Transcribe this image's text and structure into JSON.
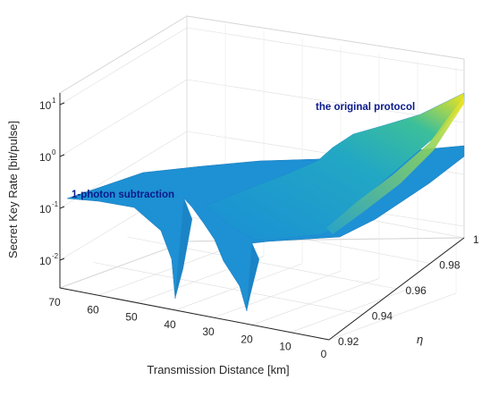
{
  "chart_data": {
    "type": "surface",
    "title": "",
    "zlabel": "Secret Key Rate [bit/pulse]",
    "xlabel": "Transmission Distance [km]",
    "ylabel": "η",
    "zscale": "log",
    "grid": true,
    "x_ticks": [
      "70",
      "60",
      "50",
      "40",
      "30",
      "20",
      "10",
      "0"
    ],
    "y_ticks": [
      "0.92",
      "0.94",
      "0.96",
      "0.98",
      "1"
    ],
    "z_ticks": [
      {
        "base": "10",
        "exp": "1"
      },
      {
        "base": "10",
        "exp": "0"
      },
      {
        "base": "10",
        "exp": "-1"
      },
      {
        "base": "10",
        "exp": "-2"
      }
    ],
    "xlim": [
      0,
      70
    ],
    "ylim": [
      0.92,
      1.0
    ],
    "series": [
      {
        "name": "the original protocol",
        "description_values": {
          "distance_km": [
            0,
            20,
            40,
            50,
            60,
            70
          ],
          "max_distance_km": 20,
          "rate_at_0km_eta_1": 10,
          "rate_at_0km_eta_0.92": 0.6
        }
      },
      {
        "name": "1-photon subtraction",
        "description_values": {
          "max_distance_km": 40,
          "rate_at_0km_eta_1": 1.3,
          "rate_at_70km_eta_1": 0.1
        }
      }
    ],
    "annotations": [
      "the original protocol",
      "1-photon subtraction"
    ]
  },
  "colors": {
    "surface_blue": "#1f8fd6",
    "surface_teal": "#2bb0b0",
    "surface_yellow": "#f0e020",
    "annotation": "#0a1a8a",
    "axis": "#262626",
    "grid": "#c8c8c8"
  }
}
